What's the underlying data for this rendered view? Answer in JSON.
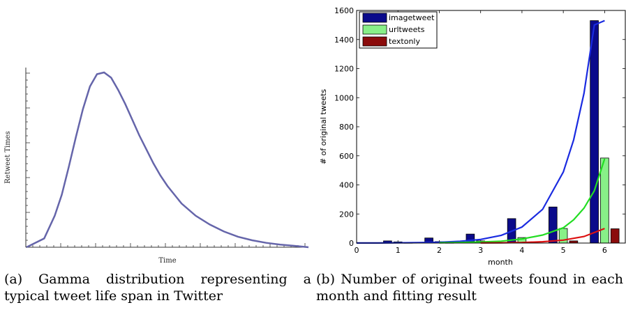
{
  "chart_data": [
    {
      "type": "line",
      "title": "",
      "xlabel": "Time",
      "ylabel": "Retweet Times",
      "grid": false,
      "series": [
        {
          "color": "#6565aa",
          "x": [
            0,
            2.5,
            4,
            5,
            6,
            7,
            8,
            9,
            10,
            11,
            12,
            13,
            14,
            15,
            16,
            17,
            18,
            19,
            20,
            22,
            24,
            26,
            28,
            30,
            32,
            34,
            36,
            38,
            40
          ],
          "values": [
            0,
            0.05,
            0.18,
            0.3,
            0.46,
            0.63,
            0.79,
            0.92,
            0.99,
            1.0,
            0.97,
            0.9,
            0.82,
            0.73,
            0.64,
            0.56,
            0.48,
            0.41,
            0.35,
            0.25,
            0.18,
            0.13,
            0.09,
            0.06,
            0.04,
            0.025,
            0.015,
            0.008,
            0.0
          ]
        }
      ],
      "caption": "(a) Gamma distribution representing a typical tweet life span in Twitter"
    },
    {
      "type": "bar",
      "title": "",
      "xlabel": "month",
      "ylabel": "# of original tweets",
      "xlim": [
        0,
        6.5
      ],
      "ylim": [
        0,
        1600
      ],
      "xticks": [
        0,
        1,
        2,
        3,
        4,
        5,
        6
      ],
      "yticks": [
        0,
        200,
        400,
        600,
        800,
        1000,
        1200,
        1400,
        1600
      ],
      "grid": false,
      "legend": "top-left",
      "categories": [
        1,
        2,
        3,
        4,
        5,
        6
      ],
      "series": [
        {
          "name": "imagetweet",
          "color": "#0b0b8b",
          "values": [
            15,
            35,
            62,
            168,
            248,
            1530
          ]
        },
        {
          "name": "urltweets",
          "color": "#88f088",
          "values": [
            8,
            10,
            15,
            38,
            100,
            585
          ]
        },
        {
          "name": "textonly",
          "color": "#8b0b0b",
          "values": [
            2,
            2,
            3,
            5,
            15,
            98
          ]
        }
      ],
      "fits": [
        {
          "series": "imagetweet",
          "color": "#1a2be0",
          "x": [
            0,
            0.5,
            1,
            1.5,
            2,
            2.5,
            3,
            3.5,
            4,
            4.5,
            5,
            5.25,
            5.5,
            5.75,
            6
          ],
          "values": [
            0.3,
            0.6,
            1.3,
            2.7,
            5.7,
            11.9,
            25,
            53,
            110,
            232,
            489,
            710,
            1030,
            1500,
            1530
          ]
        },
        {
          "series": "urltweets",
          "color": "#22dd22",
          "x": [
            2,
            2.5,
            3,
            3.5,
            4,
            4.5,
            5,
            5.25,
            5.5,
            5.75,
            6
          ],
          "values": [
            2,
            4,
            7,
            13,
            28,
            55,
            105,
            160,
            240,
            360,
            580
          ]
        },
        {
          "series": "textonly",
          "color": "#dd1111",
          "x": [
            3,
            3.5,
            4,
            4.5,
            5,
            5.5,
            6
          ],
          "values": [
            1,
            2,
            4,
            9,
            20,
            45,
            100
          ]
        }
      ],
      "caption": "(b) Number of original tweets found in each month and fitting result"
    }
  ]
}
